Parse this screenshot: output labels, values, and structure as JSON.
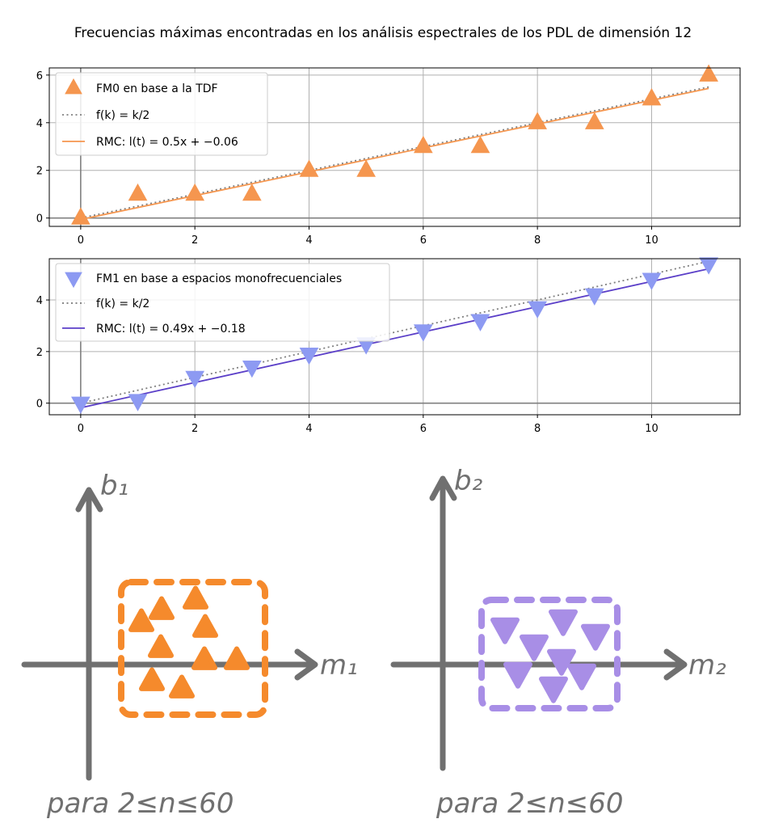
{
  "figure_title": "Frecuencias máximas encontradas en los análisis espectrales de los PDL de dimensión 12",
  "colors": {
    "fm0": "#f5964f",
    "fm1": "#8d9af2",
    "rmc0": "#f5964f",
    "rmc1": "#5b3fc8",
    "reference": "#808080",
    "sketch_orange": "#f58a2c",
    "sketch_purple": "#a88ee6",
    "sketch_axis": "#707070"
  },
  "chart_data": [
    {
      "type": "scatter",
      "title": "",
      "xlabel": "",
      "ylabel": "",
      "xlim": [
        -0.55,
        11.55
      ],
      "ylim": [
        -0.35,
        6.3
      ],
      "xticks": [
        0,
        2,
        4,
        6,
        8,
        10
      ],
      "yticks": [
        0,
        2,
        4,
        6
      ],
      "grid": true,
      "legend_position": "upper-left",
      "series": [
        {
          "name": "FM0 en base a la TDF",
          "kind": "markers",
          "marker": "triangle-up",
          "x": [
            0,
            1,
            2,
            3,
            4,
            5,
            6,
            7,
            8,
            9,
            10,
            11
          ],
          "y": [
            0,
            1,
            1,
            1,
            2,
            2,
            3,
            3,
            4,
            4,
            5,
            6
          ]
        },
        {
          "name": "f(k) = k/2",
          "kind": "dotted-line",
          "slope": 0.5,
          "intercept": 0
        },
        {
          "name": "RMC: l(t) = 0.5x + −0.06",
          "kind": "line",
          "slope": 0.5,
          "intercept": -0.06
        }
      ]
    },
    {
      "type": "scatter",
      "title": "",
      "xlabel": "",
      "ylabel": "",
      "xlim": [
        -0.55,
        11.55
      ],
      "ylim": [
        -0.45,
        5.6
      ],
      "xticks": [
        0,
        2,
        4,
        6,
        8,
        10
      ],
      "yticks": [
        0,
        2,
        4
      ],
      "grid": true,
      "legend_position": "upper-left",
      "series": [
        {
          "name": "FM1 en base a espacios monofrecuenciales",
          "kind": "markers",
          "marker": "triangle-down",
          "x": [
            0,
            1,
            2,
            3,
            4,
            5,
            6,
            7,
            8,
            9,
            10,
            11
          ],
          "y": [
            0,
            0.1,
            1,
            1.4,
            1.9,
            2.3,
            2.8,
            3.2,
            3.7,
            4.2,
            4.8,
            5.4
          ]
        },
        {
          "name": "f(k) = k/2",
          "kind": "dotted-line",
          "slope": 0.5,
          "intercept": 0
        },
        {
          "name": "RMC: l(t) = 0.49x + −0.18",
          "kind": "line",
          "slope": 0.49,
          "intercept": -0.18
        }
      ]
    }
  ],
  "legend": [
    [
      "FM0 en base a la TDF",
      "f(k) = k/2",
      "RMC: l(t) = 0.5x + −0.06"
    ],
    [
      "FM1 en base a espacios monofrecuenciales",
      "f(k) = k/2",
      "RMC: l(t) = 0.49x + −0.18"
    ]
  ],
  "sketch": {
    "left": {
      "y_axis_label": "b₁",
      "x_axis_label": "m₁",
      "caption": "para 2≤n≤60"
    },
    "right": {
      "y_axis_label": "b₂",
      "x_axis_label": "m₂",
      "caption": "para 2≤n≤60"
    }
  }
}
